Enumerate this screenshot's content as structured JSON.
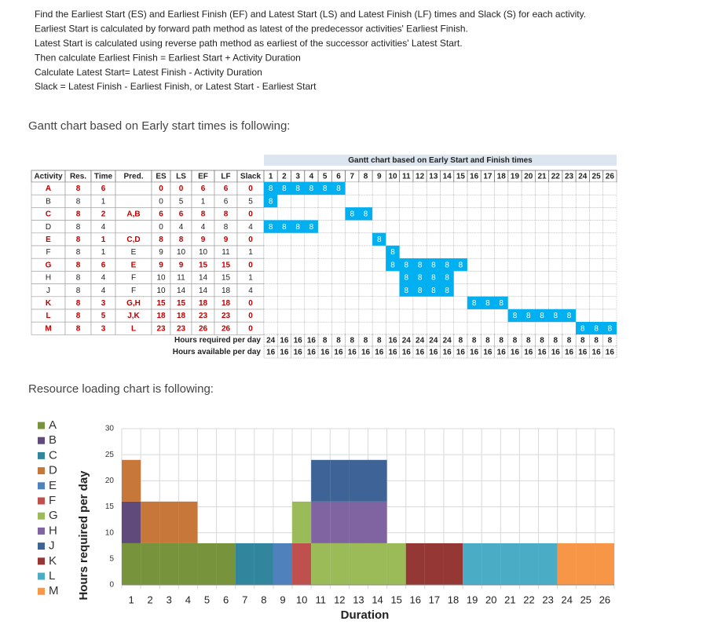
{
  "instructions": [
    "Find the Earliest Start (ES) and Earliest Finish (EF) and Latest Start (LS) and Latest Finish (LF) times and Slack (S) for each activity.",
    "Earliest Start is calculated by forward path method as latest of the predecessor activities' Earliest Finish.",
    "Latest Start is calculated using reverse path method as earliest of the successor activities' Latest Start.",
    "Then calculate Earliest Finish = Earliest Start + Activity Duration",
    "Calculate Latest Start= Latest Finish - Activity Duration",
    "Slack = Latest Finish - Earliest Finish,  or   Latest Start - Earliest Start"
  ],
  "gantt_heading": "Gantt chart based on Early start times is following:",
  "table": {
    "gantt_title": "Gantt chart based on Early Start and Finish times",
    "columns": [
      "Activity",
      "Res.",
      "Time",
      "Pred.",
      "ES",
      "LS",
      "EF",
      "LF",
      "Slack"
    ],
    "days": [
      1,
      2,
      3,
      4,
      5,
      6,
      7,
      8,
      9,
      10,
      11,
      12,
      13,
      14,
      15,
      16,
      17,
      18,
      19,
      20,
      21,
      22,
      23,
      24,
      25,
      26
    ],
    "rows": [
      {
        "activity": "A",
        "res": 8,
        "time": 6,
        "es": 0,
        "ls": 0,
        "ef": 6,
        "lf": 6,
        "slack": 0,
        "critical": true
      },
      {
        "activity": "B",
        "res": 8,
        "time": 1,
        "es": 0,
        "ls": 5,
        "ef": 1,
        "lf": 6,
        "slack": 5,
        "critical": false
      },
      {
        "activity": "C",
        "res": 8,
        "time": 2,
        "pred": "A,B",
        "es": 6,
        "ls": 6,
        "ef": 8,
        "lf": 8,
        "slack": 0,
        "critical": true
      },
      {
        "activity": "D",
        "res": 8,
        "time": 4,
        "es": 0,
        "ls": 4,
        "ef": 4,
        "lf": 8,
        "slack": 4,
        "critical": false
      },
      {
        "activity": "E",
        "res": 8,
        "time": 1,
        "pred": "C,D",
        "es": 8,
        "ls": 8,
        "ef": 9,
        "lf": 9,
        "slack": 0,
        "critical": true
      },
      {
        "activity": "F",
        "res": 8,
        "time": 1,
        "pred": "E",
        "es": 9,
        "ls": 10,
        "ef": 10,
        "lf": 11,
        "slack": 1,
        "critical": false
      },
      {
        "activity": "G",
        "res": 8,
        "time": 6,
        "pred": "E",
        "es": 9,
        "ls": 9,
        "ef": 15,
        "lf": 15,
        "slack": 0,
        "critical": true
      },
      {
        "activity": "H",
        "res": 8,
        "time": 4,
        "pred": "F",
        "es": 10,
        "ls": 11,
        "ef": 14,
        "lf": 15,
        "slack": 1,
        "critical": false
      },
      {
        "activity": "J",
        "res": 8,
        "time": 4,
        "pred": "F",
        "es": 10,
        "ls": 14,
        "ef": 14,
        "lf": 18,
        "slack": 4,
        "critical": false
      },
      {
        "activity": "K",
        "res": 8,
        "time": 3,
        "pred": "G,H",
        "es": 15,
        "ls": 15,
        "ef": 18,
        "lf": 18,
        "slack": 0,
        "critical": true
      },
      {
        "activity": "L",
        "res": 8,
        "time": 5,
        "pred": "J,K",
        "es": 18,
        "ls": 18,
        "ef": 23,
        "lf": 23,
        "slack": 0,
        "critical": true
      },
      {
        "activity": "M",
        "res": 8,
        "time": 3,
        "pred": "L",
        "es": 23,
        "ls": 23,
        "ef": 26,
        "lf": 26,
        "slack": 0,
        "critical": true
      }
    ],
    "required_label": "Hours required per day",
    "required": [
      24,
      16,
      16,
      16,
      8,
      8,
      8,
      8,
      8,
      16,
      24,
      24,
      24,
      24,
      8,
      8,
      8,
      8,
      8,
      8,
      8,
      8,
      8,
      8,
      8,
      8
    ],
    "available_label": "Hours available per day",
    "available": [
      16,
      16,
      16,
      16,
      16,
      16,
      16,
      16,
      16,
      16,
      16,
      16,
      16,
      16,
      16,
      16,
      16,
      16,
      16,
      16,
      16,
      16,
      16,
      16,
      16,
      16
    ]
  },
  "resource_heading": "Resource loading chart is following:",
  "chart_data": {
    "type": "stacked_bar",
    "xlabel": "Duration",
    "ylabel": "Hours required per day",
    "categories": [
      1,
      2,
      3,
      4,
      5,
      6,
      7,
      8,
      9,
      10,
      11,
      12,
      13,
      14,
      15,
      16,
      17,
      18,
      19,
      20,
      21,
      22,
      23,
      24,
      25,
      26
    ],
    "ylim": [
      0,
      30
    ],
    "yticks": [
      0,
      5,
      10,
      15,
      20,
      25,
      30
    ],
    "grid": true,
    "legend": "left",
    "series": [
      {
        "name": "A",
        "color": "#77933c",
        "values": [
          8,
          8,
          8,
          8,
          8,
          8,
          null,
          null,
          null,
          null,
          null,
          null,
          null,
          null,
          null,
          null,
          null,
          null,
          null,
          null,
          null,
          null,
          null,
          null,
          null,
          null
        ]
      },
      {
        "name": "B",
        "color": "#604a7b",
        "values": [
          8,
          null,
          null,
          null,
          null,
          null,
          null,
          null,
          null,
          null,
          null,
          null,
          null,
          null,
          null,
          null,
          null,
          null,
          null,
          null,
          null,
          null,
          null,
          null,
          null,
          null
        ]
      },
      {
        "name": "C",
        "color": "#31859c",
        "values": [
          null,
          null,
          null,
          null,
          null,
          null,
          8,
          8,
          null,
          null,
          null,
          null,
          null,
          null,
          null,
          null,
          null,
          null,
          null,
          null,
          null,
          null,
          null,
          null,
          null,
          null
        ]
      },
      {
        "name": "D",
        "color": "#c8773a",
        "values": [
          8,
          8,
          8,
          8,
          null,
          null,
          null,
          null,
          null,
          null,
          null,
          null,
          null,
          null,
          null,
          null,
          null,
          null,
          null,
          null,
          null,
          null,
          null,
          null,
          null,
          null
        ]
      },
      {
        "name": "E",
        "color": "#4f81bd",
        "values": [
          null,
          null,
          null,
          null,
          null,
          null,
          null,
          null,
          8,
          null,
          null,
          null,
          null,
          null,
          null,
          null,
          null,
          null,
          null,
          null,
          null,
          null,
          null,
          null,
          null,
          null
        ]
      },
      {
        "name": "F",
        "color": "#c0504d",
        "values": [
          null,
          null,
          null,
          null,
          null,
          null,
          null,
          null,
          null,
          8,
          null,
          null,
          null,
          null,
          null,
          null,
          null,
          null,
          null,
          null,
          null,
          null,
          null,
          null,
          null,
          null
        ]
      },
      {
        "name": "G",
        "color": "#9bbb59",
        "values": [
          null,
          null,
          null,
          null,
          null,
          null,
          null,
          null,
          null,
          8,
          8,
          8,
          8,
          8,
          8,
          null,
          null,
          null,
          null,
          null,
          null,
          null,
          null,
          null,
          null,
          null
        ]
      },
      {
        "name": "H",
        "color": "#8064a2",
        "values": [
          null,
          null,
          null,
          null,
          null,
          null,
          null,
          null,
          null,
          null,
          8,
          8,
          8,
          8,
          null,
          null,
          null,
          null,
          null,
          null,
          null,
          null,
          null,
          null,
          null,
          null
        ]
      },
      {
        "name": "J",
        "color": "#3e6396",
        "values": [
          null,
          null,
          null,
          null,
          null,
          null,
          null,
          null,
          null,
          null,
          8,
          8,
          8,
          8,
          null,
          null,
          null,
          null,
          null,
          null,
          null,
          null,
          null,
          null,
          null,
          null
        ]
      },
      {
        "name": "K",
        "color": "#953735",
        "values": [
          null,
          null,
          null,
          null,
          null,
          null,
          null,
          null,
          null,
          null,
          null,
          null,
          null,
          null,
          null,
          8,
          8,
          8,
          null,
          null,
          null,
          null,
          null,
          null,
          null,
          null
        ]
      },
      {
        "name": "L",
        "color": "#4bacc6",
        "values": [
          null,
          null,
          null,
          null,
          null,
          null,
          null,
          null,
          null,
          null,
          null,
          null,
          null,
          null,
          null,
          null,
          null,
          null,
          8,
          8,
          8,
          8,
          8,
          null,
          null,
          null
        ]
      },
      {
        "name": "M",
        "color": "#f79646",
        "values": [
          null,
          null,
          null,
          null,
          null,
          null,
          null,
          null,
          null,
          null,
          null,
          null,
          null,
          null,
          null,
          null,
          null,
          null,
          null,
          null,
          null,
          null,
          null,
          8,
          8,
          8
        ]
      }
    ]
  }
}
